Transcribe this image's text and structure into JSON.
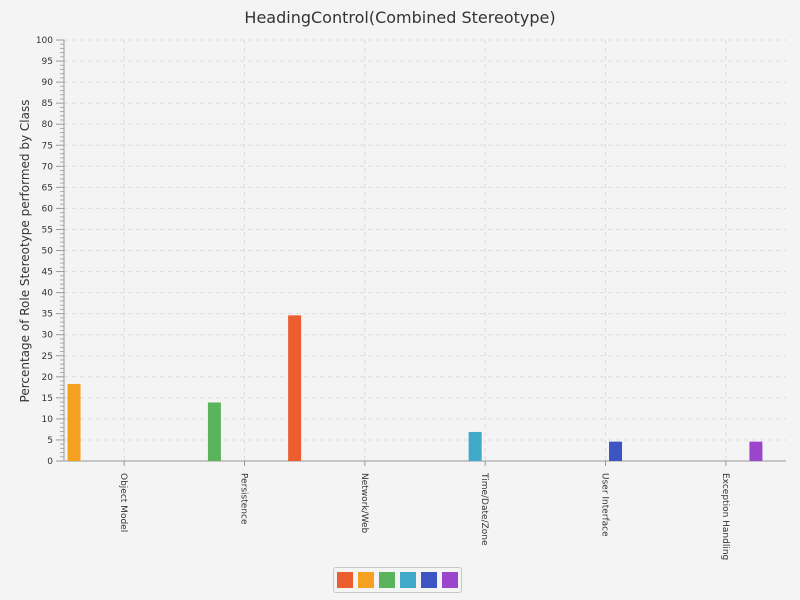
{
  "chart_data": {
    "type": "bar",
    "title": "HeadingControl(Combined Stereotype)",
    "ylabel": "Percentage of Role Stereotype performed by Class",
    "xlabel": "",
    "ylim": [
      0,
      100
    ],
    "ytick_step": 5,
    "grid": true,
    "categories": [
      "Object Model",
      "Persistence",
      "Network/Web",
      "Time/Date/Zone",
      "User Interface",
      "Exception Handling"
    ],
    "series": [
      {
        "color": "#ec5e30",
        "values": [
          0,
          0,
          34.6,
          0,
          0,
          0
        ]
      },
      {
        "color": "#f5a020",
        "values": [
          18.3,
          0,
          0,
          0,
          0,
          0
        ]
      },
      {
        "color": "#5bb35b",
        "values": [
          0,
          13.9,
          0,
          0,
          0,
          0
        ]
      },
      {
        "color": "#40a8c8",
        "values": [
          0,
          0,
          0,
          6.9,
          0,
          0
        ]
      },
      {
        "color": "#3c55c3",
        "values": [
          0,
          0,
          0,
          0,
          4.6,
          0
        ]
      },
      {
        "color": "#9b45cc",
        "values": [
          0,
          0,
          0,
          0,
          0,
          4.6
        ]
      }
    ],
    "legend_position": "bottom"
  }
}
